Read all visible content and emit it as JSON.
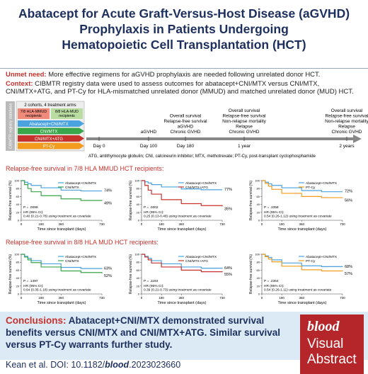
{
  "title": [
    "Abatacept for Acute Graft-Versus-Host Disease (aGVHD)",
    "Prophylaxis in Patients Undergoing",
    "Hematopoietic Cell Transplantation (HCT)"
  ],
  "unmet": {
    "label": "Unmet need:",
    "text": "More effective regimens for aGVHD prophylaxis are needed following unrelated donor HCT."
  },
  "context": {
    "label": "Context:",
    "text": "CIBMTR registry data were used to assess outcomes for abatacept+CNI/MTX versus CNI/MTX, CNI/MTX+ATG, and PT-Cy for HLA-mismatched unrelated donor (MMUD) and matched unrelated donor (MUD) HCT."
  },
  "design": {
    "database": "CIBMTR registry database",
    "cohorts": "2 cohorts, 4 treatment arms",
    "groups": [
      [
        "7/8 HLA-MMUD",
        "recipients"
      ],
      [
        "8/8 HLA-MUD",
        "recipients"
      ]
    ],
    "arms": [
      {
        "name": "Abatacept+CNI/MTX",
        "color": "#4aa3df"
      },
      {
        "name": "CNI/MTX",
        "color": "#3aa64a"
      },
      {
        "name": "CNI/MTX+ATG",
        "color": "#c8322c"
      },
      {
        "name": "PT-Cy",
        "color": "#f29b1d"
      }
    ]
  },
  "timeline": [
    {
      "label": "Day 0",
      "outcomes": []
    },
    {
      "label": "Day 100",
      "outcomes": [
        "aGVHD"
      ]
    },
    {
      "label": "Day 180",
      "outcomes": [
        "Overall survival",
        "Relapse-free survival",
        "aGVHD",
        "Chronic GVHD"
      ]
    },
    {
      "label": "1 year",
      "outcomes": [
        "Overall survival",
        "Relapse-free survival",
        "Non-relapse mortality",
        "Relapse",
        "Chronic GVHD"
      ]
    },
    {
      "label": "2 years",
      "outcomes": [
        "Overall survival",
        "Relapse-free survival",
        "Non-relapse mortality",
        "Relapse",
        "Chronic GVHD"
      ]
    }
  ],
  "abbreviations": "ATG, antithymocyte globulin; CNI, calcineurin inhibitor; MTX, methotrexate; PT-Cy, post-transplant cyclophosphamide",
  "axes": {
    "y_label": "Relapse-free survival (%)",
    "x_label": "Time since transplant (days)",
    "x": [
      0,
      30,
      60,
      90,
      180,
      360,
      540,
      730
    ],
    "xticks": [
      0,
      180,
      360,
      730
    ],
    "yticks": [
      0,
      20,
      40,
      60,
      80,
      100
    ],
    "xlim": [
      0,
      730
    ],
    "ylim": [
      0,
      100
    ]
  },
  "rows": [
    {
      "heading": "Relapse-free survival in 7/8 HLA MMUD HCT recipients:",
      "panels": [
        {
          "p": "P = .0099",
          "hr": [
            "HR (95% CI):",
            "0.40 (0.21-0.78) using treatment as covariate"
          ],
          "series": [
            {
              "name": "Abatacept+CNI/MTX",
              "color": "#4aa3df",
              "values": [
                100,
                96,
                92,
                88,
                82,
                76,
                74,
                74
              ],
              "end_label": "74%"
            },
            {
              "name": "CNI/MTX",
              "color": "#3aa64a",
              "values": [
                100,
                90,
                80,
                72,
                62,
                54,
                50,
                49
              ],
              "end_label": "49%"
            }
          ]
        },
        {
          "p": "P = .0002",
          "hr": [
            "HR (95% CI):",
            "0.25 (0.13-0.48) using treatment as covariate"
          ],
          "series": [
            {
              "name": "Abatacept+CNI/MTX",
              "color": "#4aa3df",
              "values": [
                100,
                97,
                94,
                90,
                84,
                79,
                77,
                77
              ],
              "end_label": "77%"
            },
            {
              "name": "CNI/MTX+ATG",
              "color": "#c8322c",
              "values": [
                100,
                88,
                76,
                66,
                52,
                42,
                37,
                35
              ],
              "end_label": "35%"
            }
          ]
        },
        {
          "p": "P = .1058",
          "hr": [
            "HR (95% CI):",
            "0.54 (0.26-1.12) using treatment as covariate"
          ],
          "series": [
            {
              "name": "Abatacept+CNI/MTX",
              "color": "#4aa3df",
              "values": [
                100,
                96,
                92,
                88,
                82,
                75,
                72,
                72
              ],
              "end_label": "72%"
            },
            {
              "name": "PT-Cy",
              "color": "#f29b1d",
              "values": [
                100,
                93,
                86,
                78,
                68,
                60,
                57,
                56
              ],
              "end_label": "56%"
            }
          ]
        }
      ]
    },
    {
      "heading": "Relapse-free survival in 8/8 HLA MUD HCT recipients:",
      "panels": [
        {
          "p": "P = .1497",
          "hr": [
            "HR (95% CI):",
            "0.64 (0.35-1.18) using treatment as covariate"
          ],
          "series": [
            {
              "name": "Abatacept+CNI/MTX",
              "color": "#4aa3df",
              "values": [
                100,
                95,
                90,
                84,
                76,
                67,
                64,
                63
              ],
              "end_label": "63%"
            },
            {
              "name": "CNI/MTX",
              "color": "#3aa64a",
              "values": [
                100,
                93,
                86,
                79,
                68,
                58,
                54,
                52
              ],
              "end_label": "52%"
            }
          ]
        },
        {
          "p": "P = .1193",
          "hr": [
            "HR (95% CI):",
            "0.39 (0.21-0.73) using treatment as covariate"
          ],
          "series": [
            {
              "name": "Abatacept+CNI/MTX",
              "color": "#4aa3df",
              "values": [
                100,
                95,
                90,
                84,
                76,
                68,
                65,
                64
              ],
              "end_label": "64%"
            },
            {
              "name": "CNI/MTX+ATG",
              "color": "#c8322c",
              "values": [
                100,
                93,
                86,
                78,
                68,
                60,
                56,
                55
              ],
              "end_label": "55%"
            }
          ]
        },
        {
          "p": "P = .2354",
          "hr": [
            "HR (95% CI):",
            "0.54 (0.26-1.11) using treatment as covariate"
          ],
          "series": [
            {
              "name": "Abatacept+CNI/MTX",
              "color": "#4aa3df",
              "values": [
                100,
                96,
                92,
                86,
                78,
                71,
                69,
                68
              ],
              "end_label": "68%"
            },
            {
              "name": "PT-Cy",
              "color": "#f29b1d",
              "values": [
                100,
                94,
                88,
                81,
                70,
                61,
                58,
                57
              ],
              "end_label": "57%"
            }
          ]
        }
      ]
    }
  ],
  "conclusions": {
    "label": "Conclusions:",
    "text": "Abatacept+CNI/MTX demonstrated survival benefits versus CNI/MTX and CNI/MTX+ATG. Similar survival versus PT-Cy warrants further study."
  },
  "logo": {
    "brand": "blood",
    "line1": "Visual",
    "line2": "Abstract"
  },
  "citation": {
    "before": "Kean et al. DOI: 10.1182/",
    "journal": "blood",
    "after": ".2023023660"
  }
}
